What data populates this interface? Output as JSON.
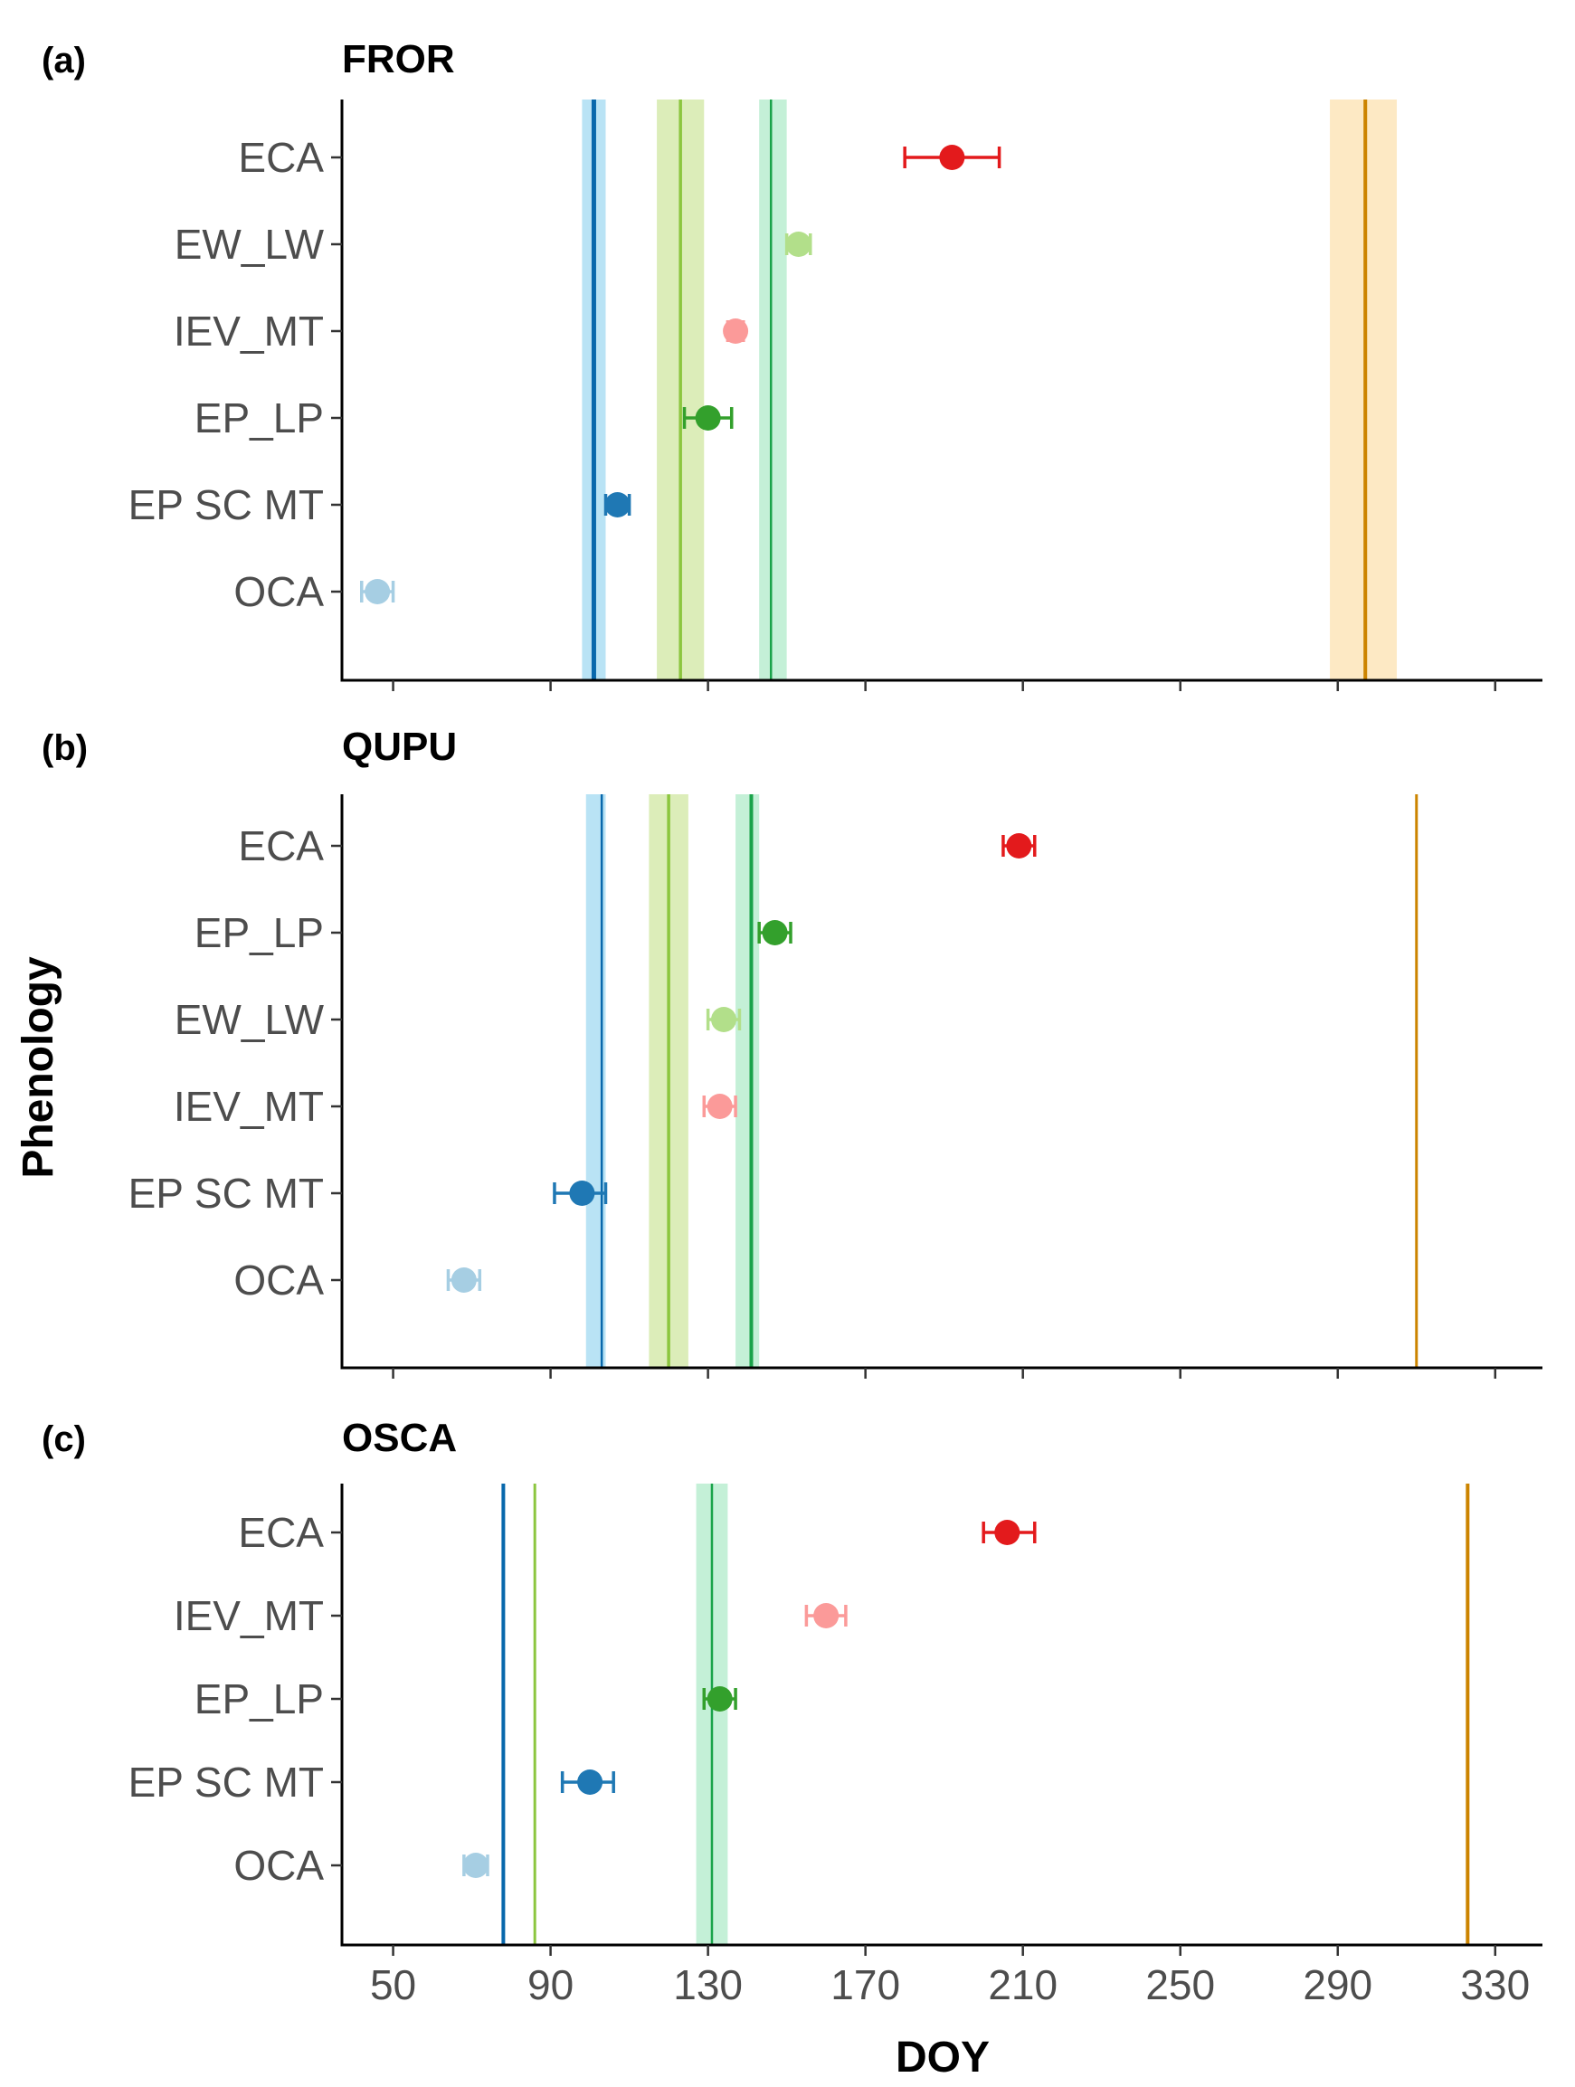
{
  "chart_data": {
    "type": "scatter",
    "xlabel": "DOY",
    "ylabel": "Phenology",
    "xlim": [
      37,
      342
    ],
    "x_ticks": [
      "50",
      "90",
      "130",
      "170",
      "210",
      "250",
      "290",
      "330"
    ],
    "panels": [
      {
        "tag": "(a)",
        "title": "FROR",
        "categories": [
          "ECA",
          "EW_LW",
          "IEV_MT",
          "EP_LP",
          "EP SC MT",
          "OCA"
        ],
        "points": [
          {
            "category": "ECA",
            "x": 192,
            "lo": 180,
            "hi": 204,
            "color": "#e31a1c"
          },
          {
            "category": "EW_LW",
            "x": 153,
            "lo": 150,
            "hi": 156,
            "color": "#b2df8a"
          },
          {
            "category": "IEV_MT",
            "x": 137,
            "lo": 135,
            "hi": 139,
            "color": "#fb9a99"
          },
          {
            "category": "EP_LP",
            "x": 130,
            "lo": 124,
            "hi": 136,
            "color": "#33a02c"
          },
          {
            "category": "EP SC MT",
            "x": 107,
            "lo": 104,
            "hi": 110,
            "color": "#1f78b4"
          },
          {
            "category": "OCA",
            "x": 46,
            "lo": 42,
            "hi": 50,
            "color": "#a6cee3"
          }
        ],
        "vlines": [
          {
            "x": 101,
            "lo": 98,
            "hi": 104,
            "color": "#0868ac",
            "band": "#b9e3f5",
            "width": 5
          },
          {
            "x": 123,
            "lo": 117,
            "hi": 129,
            "color": "#8cc63f",
            "band": "#dcedb9",
            "width": 3.5
          },
          {
            "x": 146,
            "lo": 143,
            "hi": 150,
            "color": "#1aa34a",
            "band": "#c4f0d7",
            "width": 2.5
          },
          {
            "x": 297,
            "lo": 288,
            "hi": 305,
            "color": "#cc8400",
            "band": "#fde9c4",
            "width": 4
          }
        ]
      },
      {
        "tag": "(b)",
        "title": "QUPU",
        "categories": [
          "ECA",
          "EP_LP",
          "EW_LW",
          "IEV_MT",
          "EP SC MT",
          "OCA"
        ],
        "points": [
          {
            "category": "ECA",
            "x": 209,
            "lo": 205,
            "hi": 213,
            "color": "#e31a1c"
          },
          {
            "category": "EP_LP",
            "x": 147,
            "lo": 143,
            "hi": 151,
            "color": "#33a02c"
          },
          {
            "category": "EW_LW",
            "x": 134,
            "lo": 130,
            "hi": 138,
            "color": "#b2df8a"
          },
          {
            "category": "IEV_MT",
            "x": 133,
            "lo": 129,
            "hi": 137,
            "color": "#fb9a99"
          },
          {
            "category": "EP SC MT",
            "x": 98,
            "lo": 91,
            "hi": 104,
            "color": "#1f78b4"
          },
          {
            "category": "OCA",
            "x": 68,
            "lo": 64,
            "hi": 72,
            "color": "#a6cee3"
          }
        ],
        "vlines": [
          {
            "x": 103,
            "lo": 99,
            "hi": 104,
            "color": "#0868ac",
            "band": "#b9e3f5",
            "width": 2.5
          },
          {
            "x": 120,
            "lo": 115,
            "hi": 125,
            "color": "#8cc63f",
            "band": "#dcedb9",
            "width": 3.5
          },
          {
            "x": 141,
            "lo": 137,
            "hi": 143,
            "color": "#1aa34a",
            "band": "#c4f0d7",
            "width": 4
          },
          {
            "x": 310,
            "lo": null,
            "hi": null,
            "color": "#cc8400",
            "band": null,
            "width": 3
          }
        ]
      },
      {
        "tag": "(c)",
        "title": "OSCA",
        "categories": [
          "ECA",
          "IEV_MT",
          "EP_LP",
          "EP SC MT",
          "OCA"
        ],
        "points": [
          {
            "category": "ECA",
            "x": 206,
            "lo": 200,
            "hi": 213,
            "color": "#e31a1c"
          },
          {
            "category": "IEV_MT",
            "x": 160,
            "lo": 155,
            "hi": 165,
            "color": "#fb9a99"
          },
          {
            "category": "EP_LP",
            "x": 133,
            "lo": 129,
            "hi": 137,
            "color": "#33a02c"
          },
          {
            "category": "EP SC MT",
            "x": 100,
            "lo": 93,
            "hi": 106,
            "color": "#1f78b4"
          },
          {
            "category": "OCA",
            "x": 71,
            "lo": 68,
            "hi": 74,
            "color": "#a6cee3"
          }
        ],
        "vlines": [
          {
            "x": 78,
            "lo": null,
            "hi": null,
            "color": "#0868ac",
            "band": null,
            "width": 4
          },
          {
            "x": 86,
            "lo": null,
            "hi": null,
            "color": "#8cc63f",
            "band": null,
            "width": 3
          },
          {
            "x": 131,
            "lo": 127,
            "hi": 135,
            "color": "#1aa34a",
            "band": "#c4f0d7",
            "width": 2.5
          },
          {
            "x": 323,
            "lo": null,
            "hi": null,
            "color": "#cc8400",
            "band": null,
            "width": 4
          }
        ]
      }
    ]
  }
}
